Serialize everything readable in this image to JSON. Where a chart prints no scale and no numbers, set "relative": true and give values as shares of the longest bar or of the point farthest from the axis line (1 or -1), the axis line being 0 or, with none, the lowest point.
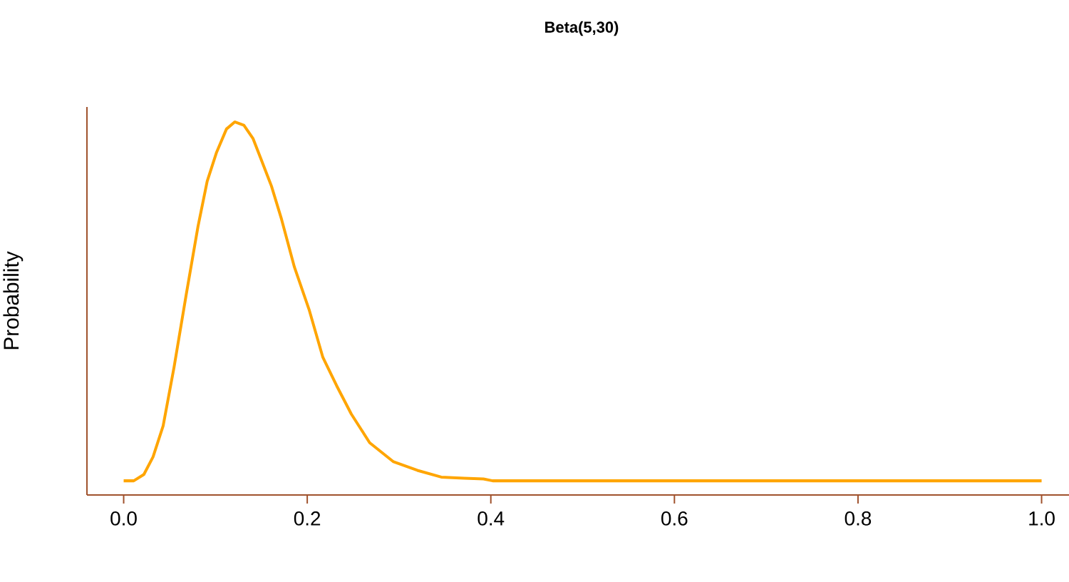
{
  "chart_data": {
    "type": "line",
    "title": "Beta(5,30)",
    "ylabel": "Probability",
    "relative": true,
    "x": [
      0,
      0.011,
      0.022,
      0.032,
      0.043,
      0.055,
      0.068,
      0.081,
      0.091,
      0.101,
      0.112,
      0.121,
      0.131,
      0.141,
      0.15,
      0.161,
      0.172,
      0.186,
      0.202,
      0.217,
      0.232,
      0.248,
      0.268,
      0.294,
      0.32,
      0.346,
      0.371,
      0.392,
      0.402,
      0.6,
      0.8,
      1.0
    ],
    "series": [
      {
        "color": "#ffa500",
        "values": [
          0.038,
          0.038,
          0.055,
          0.102,
          0.185,
          0.344,
          0.535,
          0.72,
          0.841,
          0.917,
          0.981,
          1.0,
          0.991,
          0.955,
          0.898,
          0.828,
          0.739,
          0.611,
          0.497,
          0.369,
          0.293,
          0.217,
          0.14,
          0.089,
          0.066,
          0.048,
          0.045,
          0.043,
          0.038,
          0.038,
          0.038,
          0.038
        ]
      }
    ],
    "xlim": [
      -0.04,
      1.03
    ],
    "xticks": [
      {
        "value": 0,
        "label": "0.0"
      },
      {
        "value": 0.2,
        "label": "0.2"
      },
      {
        "value": 0.4,
        "label": "0.4"
      },
      {
        "value": 0.6,
        "label": "0.6"
      },
      {
        "value": 0.8,
        "label": "0.8"
      },
      {
        "value": 1.0,
        "label": "1.0"
      }
    ],
    "marker": "none",
    "line_style": "solid"
  }
}
